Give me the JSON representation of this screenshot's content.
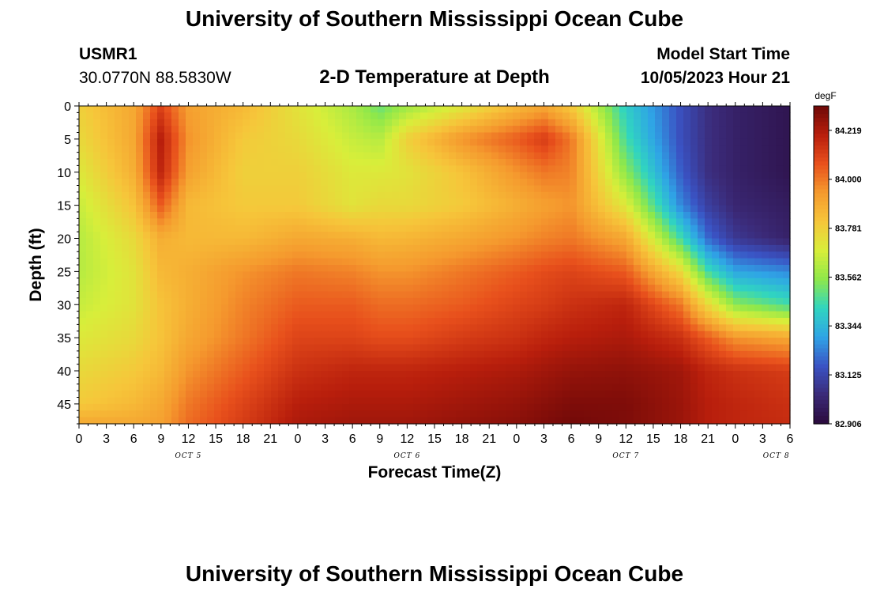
{
  "page": {
    "title": "University of Southern Mississippi Ocean Cube",
    "footer_title": "University of Southern Mississippi Ocean Cube",
    "station_id": "USMR1",
    "station_coords": "30.0770N  88.5830W",
    "plot_title": "2-D Temperature at Depth",
    "model_start_label": "Model Start Time",
    "model_start_value": "10/05/2023 Hour 21"
  },
  "chart_data": {
    "type": "heatmap",
    "title": "2-D Temperature at Depth",
    "xlabel": "Forecast Time(Z)",
    "ylabel": "Depth (ft)",
    "x_tick_labels": [
      "0",
      "3",
      "6",
      "9",
      "12",
      "15",
      "18",
      "21",
      "0",
      "3",
      "6",
      "9",
      "12",
      "15",
      "18",
      "21",
      "0",
      "3",
      "6",
      "9",
      "12",
      "15",
      "18",
      "21",
      "0",
      "3",
      "6"
    ],
    "x_hours_since_oct5_00z": [
      0,
      3,
      6,
      9,
      12,
      15,
      18,
      21,
      24,
      27,
      30,
      33,
      36,
      39,
      42,
      45,
      48,
      51,
      54,
      57,
      60,
      63,
      66,
      69,
      72,
      75,
      78
    ],
    "date_labels": [
      {
        "text": "OCT 5",
        "hour": 12
      },
      {
        "text": "OCT 6",
        "hour": 36
      },
      {
        "text": "OCT 7",
        "hour": 60
      },
      {
        "text": "OCT 8",
        "hour": 76.5
      }
    ],
    "y_ticks": [
      0,
      5,
      10,
      15,
      20,
      25,
      30,
      35,
      40,
      45
    ],
    "ylim": [
      48,
      0
    ],
    "colorbar": {
      "unit": "degF",
      "min": 82.906,
      "max": 84.328,
      "labels": [
        "84.219",
        "84.000",
        "83.781",
        "83.562",
        "83.344",
        "83.125",
        "82.906"
      ],
      "colors": [
        "#2a0a3c",
        "#3b2a78",
        "#3a53c4",
        "#2fa4e6",
        "#30d5c0",
        "#8fe84a",
        "#d8ee3a",
        "#f6c63a",
        "#f59a2e",
        "#e8501c",
        "#b81e0c",
        "#6e0808"
      ]
    },
    "depths_ft": [
      0,
      5,
      10,
      15,
      20,
      25,
      30,
      35,
      40,
      45,
      48
    ],
    "times_hours": [
      0,
      6,
      9,
      12,
      18,
      24,
      30,
      33,
      36,
      42,
      48,
      51,
      54,
      60,
      66,
      69,
      72,
      78
    ],
    "values_degF": [
      [
        83.78,
        83.9,
        84.1,
        83.92,
        83.85,
        83.72,
        83.6,
        83.5,
        83.58,
        83.7,
        83.85,
        83.9,
        83.8,
        83.4,
        83.15,
        83.05,
        83.0,
        82.95
      ],
      [
        83.75,
        83.9,
        84.2,
        83.95,
        83.8,
        83.75,
        83.65,
        83.62,
        83.78,
        83.95,
        84.05,
        84.12,
        84.0,
        83.45,
        83.15,
        83.05,
        83.0,
        82.95
      ],
      [
        83.7,
        83.88,
        84.18,
        83.92,
        83.78,
        83.78,
        83.7,
        83.7,
        83.72,
        83.82,
        83.95,
        84.0,
        83.98,
        83.55,
        83.18,
        83.05,
        83.0,
        82.95
      ],
      [
        83.65,
        83.82,
        84.05,
        83.85,
        83.8,
        83.8,
        83.72,
        83.75,
        83.75,
        83.8,
        83.88,
        83.92,
        83.95,
        83.7,
        83.25,
        83.1,
        83.02,
        82.98
      ],
      [
        83.62,
        83.75,
        83.88,
        83.85,
        83.85,
        83.9,
        83.88,
        83.85,
        83.86,
        83.9,
        83.95,
        83.98,
        84.0,
        83.9,
        83.45,
        83.2,
        83.08,
        83.0
      ],
      [
        83.62,
        83.72,
        83.85,
        83.88,
        83.95,
        84.0,
        83.98,
        83.95,
        83.95,
        84.0,
        84.05,
        84.08,
        84.1,
        84.05,
        83.75,
        83.45,
        83.3,
        83.25
      ],
      [
        83.65,
        83.72,
        83.82,
        83.88,
        83.98,
        84.05,
        84.05,
        84.02,
        84.02,
        84.05,
        84.1,
        84.12,
        84.15,
        84.18,
        84.0,
        83.75,
        83.55,
        83.45
      ],
      [
        83.7,
        83.75,
        83.82,
        83.9,
        84.0,
        84.1,
        84.1,
        84.08,
        84.08,
        84.12,
        84.15,
        84.18,
        84.2,
        84.22,
        84.15,
        84.05,
        83.95,
        83.9
      ],
      [
        83.75,
        83.8,
        83.85,
        83.95,
        84.05,
        84.15,
        84.18,
        84.18,
        84.18,
        84.2,
        84.22,
        84.24,
        84.26,
        84.27,
        84.24,
        84.18,
        84.15,
        84.12
      ],
      [
        83.8,
        83.85,
        83.9,
        84.0,
        84.1,
        84.2,
        84.22,
        84.22,
        84.22,
        84.24,
        84.26,
        84.28,
        84.3,
        84.3,
        84.25,
        84.2,
        84.18,
        84.15
      ],
      [
        83.9,
        83.9,
        83.92,
        84.02,
        84.12,
        84.22,
        84.24,
        84.24,
        84.24,
        84.26,
        84.28,
        84.3,
        84.32,
        84.3,
        84.25,
        84.2,
        84.18,
        84.16
      ]
    ]
  }
}
